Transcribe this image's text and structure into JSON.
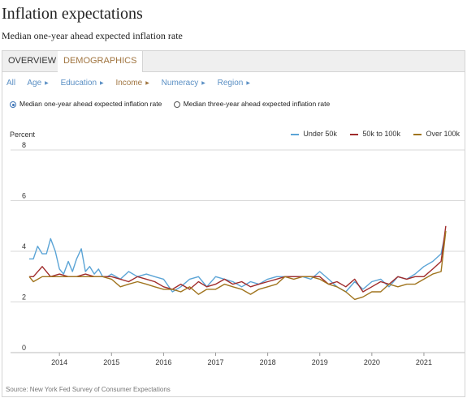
{
  "page": {
    "title": "Inflation expectations",
    "subtitle": "Median one-year ahead expected inflation rate"
  },
  "tabs": [
    {
      "label": "OVERVIEW",
      "active": false
    },
    {
      "label": "DEMOGRAPHICS",
      "active": true
    }
  ],
  "filters": [
    {
      "label": "All",
      "active": false,
      "caret": false
    },
    {
      "label": "Age",
      "active": false,
      "caret": true
    },
    {
      "label": "Education",
      "active": false,
      "caret": true
    },
    {
      "label": "Income",
      "active": true,
      "caret": true
    },
    {
      "label": "Numeracy",
      "active": false,
      "caret": true
    },
    {
      "label": "Region",
      "active": false,
      "caret": true
    }
  ],
  "radios": [
    {
      "label": "Median one-year ahead expected inflation rate",
      "selected": true
    },
    {
      "label": "Median three-year ahead expected inflation rate",
      "selected": false
    }
  ],
  "source": "Source: New York Fed Survey of Consumer Expectations",
  "colors": {
    "under50k": "#5ba4d6",
    "50kto100k": "#a02c2c",
    "over100k": "#a0741e",
    "active_accent": "#a0743f",
    "link": "#5a8fc4"
  },
  "chart_data": {
    "type": "line",
    "ylabel": "Percent",
    "ylim": [
      0,
      8
    ],
    "yticks": [
      0,
      2,
      4,
      6,
      8
    ],
    "xlim": [
      2013.42,
      2021.5
    ],
    "xticks": [
      2014,
      2015,
      2016,
      2017,
      2018,
      2019,
      2020,
      2021
    ],
    "grid": true,
    "legend": "top-right",
    "series": [
      {
        "name": "Under 50k",
        "color": "#5ba4d6",
        "x": [
          2013.42,
          2013.5,
          2013.58,
          2013.67,
          2013.75,
          2013.83,
          2013.92,
          2014.0,
          2014.08,
          2014.17,
          2014.25,
          2014.33,
          2014.42,
          2014.5,
          2014.58,
          2014.67,
          2014.75,
          2014.83,
          2014.92,
          2015.0,
          2015.17,
          2015.33,
          2015.5,
          2015.67,
          2015.83,
          2016.0,
          2016.17,
          2016.33,
          2016.5,
          2016.67,
          2016.83,
          2017.0,
          2017.17,
          2017.33,
          2017.5,
          2017.67,
          2017.83,
          2018.0,
          2018.17,
          2018.33,
          2018.5,
          2018.67,
          2018.83,
          2019.0,
          2019.17,
          2019.33,
          2019.5,
          2019.67,
          2019.83,
          2020.0,
          2020.17,
          2020.33,
          2020.5,
          2020.67,
          2020.83,
          2021.0,
          2021.17,
          2021.33,
          2021.42
        ],
        "values": [
          3.7,
          3.7,
          4.2,
          3.9,
          3.9,
          4.5,
          4.0,
          3.3,
          3.1,
          3.6,
          3.2,
          3.7,
          4.1,
          3.2,
          3.4,
          3.1,
          3.3,
          3.0,
          3.0,
          3.1,
          2.9,
          3.2,
          3.0,
          3.1,
          3.0,
          2.9,
          2.4,
          2.6,
          2.9,
          3.0,
          2.6,
          3.0,
          2.9,
          2.8,
          2.6,
          2.8,
          2.7,
          2.9,
          3.0,
          3.0,
          3.0,
          3.0,
          2.9,
          3.2,
          2.9,
          2.6,
          2.4,
          2.8,
          2.5,
          2.8,
          2.9,
          2.6,
          3.0,
          2.9,
          3.1,
          3.4,
          3.6,
          3.9,
          4.8
        ]
      },
      {
        "name": "50k to 100k",
        "color": "#a02c2c",
        "x": [
          2013.42,
          2013.5,
          2013.67,
          2013.83,
          2014.0,
          2014.17,
          2014.33,
          2014.5,
          2014.67,
          2014.83,
          2015.0,
          2015.17,
          2015.33,
          2015.5,
          2015.67,
          2015.83,
          2016.0,
          2016.17,
          2016.33,
          2016.5,
          2016.67,
          2016.83,
          2017.0,
          2017.17,
          2017.33,
          2017.5,
          2017.67,
          2017.83,
          2018.0,
          2018.17,
          2018.33,
          2018.5,
          2018.67,
          2018.83,
          2019.0,
          2019.17,
          2019.33,
          2019.5,
          2019.67,
          2019.83,
          2020.0,
          2020.17,
          2020.33,
          2020.5,
          2020.67,
          2020.83,
          2021.0,
          2021.17,
          2021.33,
          2021.42
        ],
        "values": [
          3.0,
          3.0,
          3.4,
          3.0,
          3.1,
          3.0,
          3.0,
          3.1,
          3.0,
          3.0,
          3.0,
          2.9,
          2.8,
          3.0,
          2.9,
          2.8,
          2.6,
          2.5,
          2.7,
          2.5,
          2.8,
          2.6,
          2.7,
          2.9,
          2.7,
          2.8,
          2.6,
          2.7,
          2.8,
          2.9,
          3.0,
          3.0,
          3.0,
          3.0,
          3.0,
          2.7,
          2.8,
          2.6,
          2.9,
          2.4,
          2.6,
          2.8,
          2.7,
          3.0,
          2.9,
          3.0,
          3.0,
          3.3,
          3.6,
          5.0
        ]
      },
      {
        "name": "Over 100k",
        "color": "#a0741e",
        "x": [
          2013.42,
          2013.5,
          2013.67,
          2013.83,
          2014.0,
          2014.17,
          2014.33,
          2014.5,
          2014.67,
          2014.83,
          2015.0,
          2015.17,
          2015.33,
          2015.5,
          2015.67,
          2015.83,
          2016.0,
          2016.17,
          2016.33,
          2016.5,
          2016.67,
          2016.83,
          2017.0,
          2017.17,
          2017.33,
          2017.5,
          2017.67,
          2017.83,
          2018.0,
          2018.17,
          2018.33,
          2018.5,
          2018.67,
          2018.83,
          2019.0,
          2019.17,
          2019.33,
          2019.5,
          2019.67,
          2019.83,
          2020.0,
          2020.17,
          2020.33,
          2020.5,
          2020.67,
          2020.83,
          2021.0,
          2021.17,
          2021.33,
          2021.42
        ],
        "values": [
          3.0,
          2.8,
          3.0,
          3.0,
          3.0,
          3.0,
          3.0,
          3.0,
          3.0,
          3.0,
          2.9,
          2.6,
          2.7,
          2.8,
          2.7,
          2.6,
          2.5,
          2.5,
          2.4,
          2.6,
          2.3,
          2.5,
          2.5,
          2.7,
          2.6,
          2.5,
          2.3,
          2.5,
          2.6,
          2.7,
          3.0,
          2.9,
          3.0,
          3.0,
          2.9,
          2.7,
          2.6,
          2.4,
          2.1,
          2.2,
          2.4,
          2.4,
          2.7,
          2.6,
          2.7,
          2.7,
          2.9,
          3.1,
          3.2,
          4.8
        ]
      }
    ]
  }
}
